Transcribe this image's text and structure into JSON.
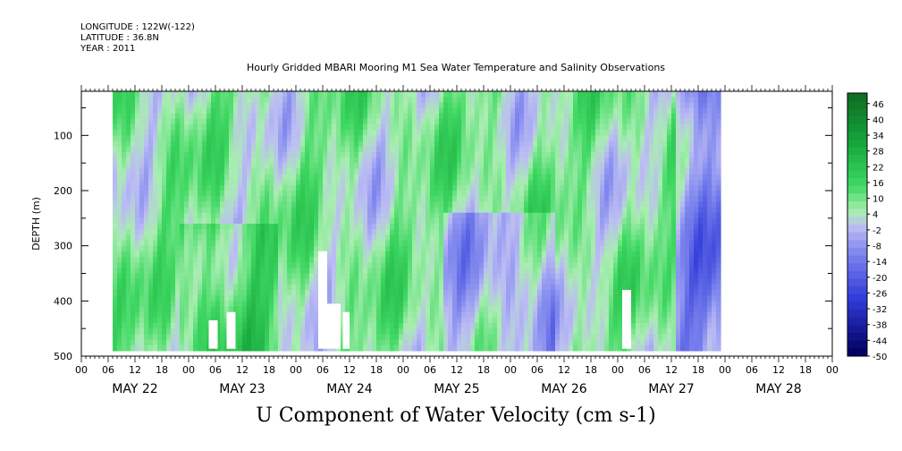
{
  "header": {
    "longitude": "LONGITUDE : 122W(-122)",
    "latitude": "LATITUDE : 36.8N",
    "year": "YEAR : 2011"
  },
  "chart_data": {
    "type": "heatmap",
    "title": "Hourly Gridded MBARI Mooring M1 Sea Water Temperature and Salinity Observations",
    "subtitle": "U Component of Water Velocity (cm s-1)",
    "ylabel": "DEPTH (m)",
    "xlabel": "",
    "ylim": [
      500,
      20
    ],
    "y_ticks": [
      100,
      200,
      300,
      400,
      500
    ],
    "x_range_hours": [
      0,
      168
    ],
    "x_hour_ticks": [
      "00",
      "06",
      "12",
      "18",
      "00",
      "06",
      "12",
      "18",
      "00",
      "06",
      "12",
      "18",
      "00",
      "06",
      "12",
      "18",
      "00",
      "06",
      "12",
      "18",
      "00",
      "06",
      "12",
      "18",
      "00",
      "06",
      "12",
      "18",
      "00"
    ],
    "x_day_labels": [
      "MAY 22",
      "MAY 23",
      "MAY 24",
      "MAY 25",
      "MAY 26",
      "MAY 27",
      "MAY 28"
    ],
    "data_extent": {
      "start": "May 22 07:00",
      "end": "May 27 23:00",
      "depth_top": 20,
      "depth_bottom": 485
    },
    "colorbar": {
      "labels": [
        "46",
        "40",
        "34",
        "28",
        "22",
        "16",
        "10",
        "4",
        "-2",
        "-8",
        "-14",
        "-20",
        "-26",
        "-32",
        "-38",
        "-44",
        "-50"
      ],
      "levels": [
        -50,
        50
      ],
      "step": 3
    },
    "colors": {
      "positive_light": "#a8eeb0",
      "positive_mid": "#3fd862",
      "positive_dark": "#0e6a22",
      "negative_light": "#bcbcf4",
      "negative_mid": "#7e86ee",
      "negative_dark": "#030365"
    }
  }
}
